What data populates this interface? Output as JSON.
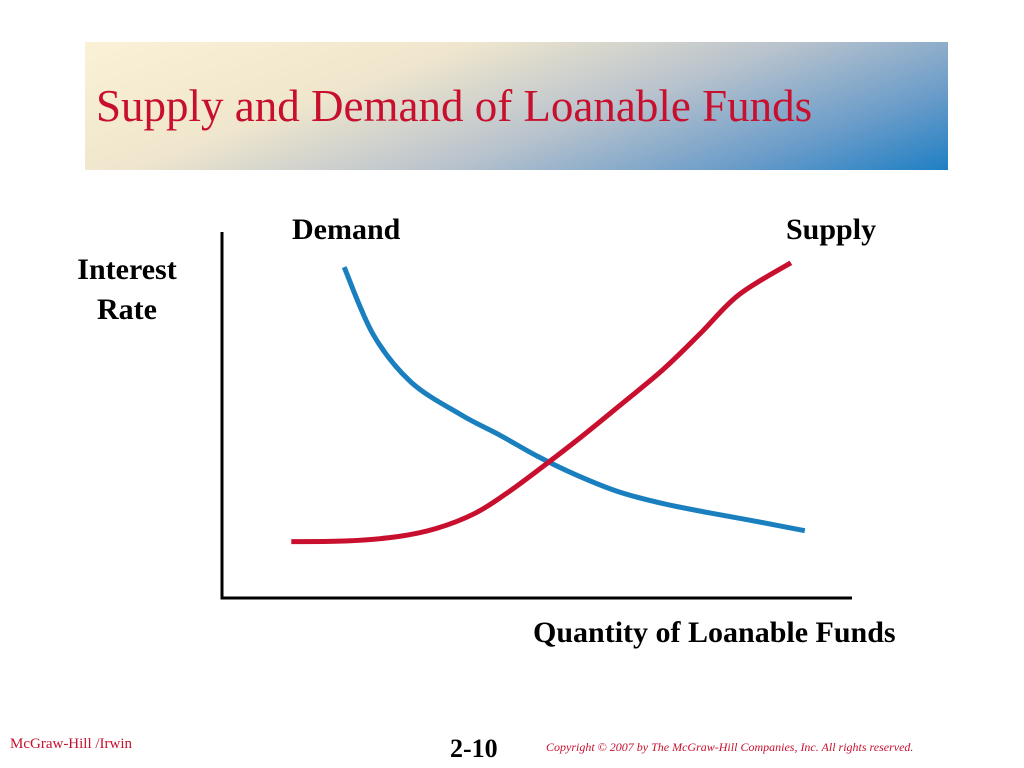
{
  "slide": {
    "title": "Supply and Demand of Loanable Funds",
    "footer_left": "McGraw-Hill /Irwin",
    "page_number": "2-10",
    "copyright": "Copyright © 2007 by The McGraw-Hill Companies, Inc.  All rights reserved."
  },
  "colors": {
    "title": "#c8102e",
    "demand": "#1a7fbf",
    "supply": "#c8102e",
    "axis": "#000000"
  },
  "chart_data": {
    "type": "line",
    "title": "",
    "xlabel": "Quantity of Loanable Funds",
    "ylabel": "Interest Rate",
    "xlim": [
      0,
      100
    ],
    "ylim": [
      0,
      100
    ],
    "grid": false,
    "tick_labels_shown": false,
    "series": [
      {
        "name": "Demand",
        "color": "#1a7fbf",
        "x": [
          19.4,
          24,
          30,
          38,
          44,
          50,
          56,
          63,
          70,
          77,
          84,
          92.5
        ],
        "y": [
          90.4,
          72,
          59,
          50,
          44.6,
          38.8,
          33.8,
          29,
          25.8,
          23.4,
          21.2,
          18.4
        ]
      },
      {
        "name": "Supply",
        "color": "#c8102e",
        "x": [
          11,
          20,
          28,
          34,
          40,
          45,
          51,
          57,
          63,
          70,
          76,
          82,
          90.3
        ],
        "y": [
          15.4,
          15.6,
          16.8,
          19,
          23,
          28.4,
          36,
          44,
          52.4,
          62.4,
          72.4,
          82.8,
          91.6
        ]
      }
    ]
  }
}
